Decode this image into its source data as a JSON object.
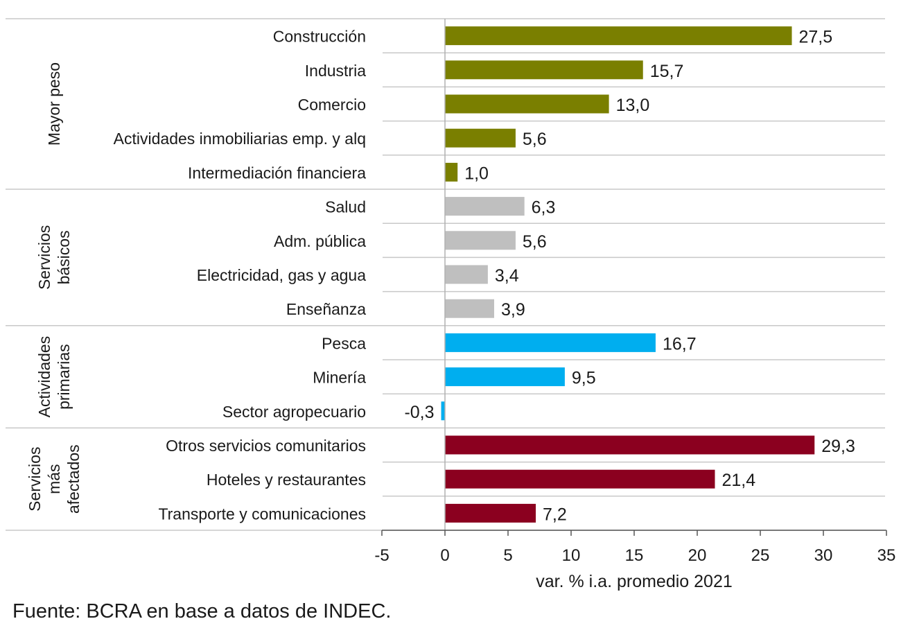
{
  "chart_data": {
    "type": "bar",
    "orientation": "horizontal",
    "xlabel": "var. % i.a. promedio 2021",
    "xlim": [
      -5,
      35
    ],
    "xticks": [
      -5,
      0,
      5,
      10,
      15,
      20,
      25,
      30,
      35
    ],
    "grid": "horizontal-separators",
    "groups": [
      {
        "name": "Mayor peso",
        "label_lines": [
          "Mayor peso"
        ],
        "color": "#7a7f00",
        "items": [
          {
            "label": "Construcción",
            "value": 27.5,
            "value_label": "27,5"
          },
          {
            "label": "Industria",
            "value": 15.7,
            "value_label": "15,7"
          },
          {
            "label": "Comercio",
            "value": 13.0,
            "value_label": "13,0"
          },
          {
            "label": "Actividades inmobiliarias emp. y alq",
            "value": 5.6,
            "value_label": "5,6"
          },
          {
            "label": "Intermediación financiera",
            "value": 1.0,
            "value_label": "1,0"
          }
        ]
      },
      {
        "name": "Servicios básicos",
        "label_lines": [
          "Servicios",
          "básicos"
        ],
        "color": "#bfbfbf",
        "items": [
          {
            "label": "Salud",
            "value": 6.3,
            "value_label": "6,3"
          },
          {
            "label": "Adm. pública",
            "value": 5.6,
            "value_label": "5,6"
          },
          {
            "label": "Electricidad, gas y agua",
            "value": 3.4,
            "value_label": "3,4"
          },
          {
            "label": "Enseñanza",
            "value": 3.9,
            "value_label": "3,9"
          }
        ]
      },
      {
        "name": "Actividades primarias",
        "label_lines": [
          "Actividades",
          "primarias"
        ],
        "color": "#00aeef",
        "items": [
          {
            "label": "Pesca",
            "value": 16.7,
            "value_label": "16,7"
          },
          {
            "label": "Minería",
            "value": 9.5,
            "value_label": "9,5"
          },
          {
            "label": "Sector agropecuario",
            "value": -0.3,
            "value_label": "-0,3"
          }
        ]
      },
      {
        "name": "Servicios más afectados",
        "label_lines": [
          "Servicios",
          "más",
          "afectados"
        ],
        "color": "#8b001f",
        "items": [
          {
            "label": "Otros servicios comunitarios",
            "value": 29.3,
            "value_label": "29,3"
          },
          {
            "label": "Hoteles y restaurantes",
            "value": 21.4,
            "value_label": "21,4"
          },
          {
            "label": "Transporte y comunicaciones",
            "value": 7.2,
            "value_label": "7,2"
          }
        ]
      }
    ]
  },
  "source": "Fuente: BCRA en base a datos de INDEC."
}
